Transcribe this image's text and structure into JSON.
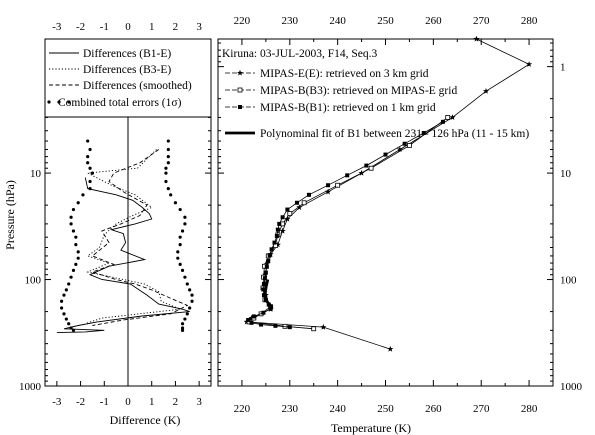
{
  "chart_data": [
    {
      "type": "line",
      "xlabel": "Difference (K)",
      "ylabel": "Pressure (hPa)",
      "xlim": [
        -3.5,
        3.5
      ],
      "ylim": [
        1000,
        0.55
      ],
      "yscale": "log",
      "x_ticks": [
        "-3",
        "-2",
        "-1",
        "0",
        "1",
        "2",
        "3"
      ],
      "y_ticks": [
        "10",
        "100",
        "1000"
      ],
      "zero_line": true,
      "legend_position": "top",
      "legend": [
        {
          "label": "Differences (B1-E)",
          "style": "solid"
        },
        {
          "label": "Differences (B3-E)",
          "style": "dotted"
        },
        {
          "label": "Differences (smoothed)",
          "style": "dashed"
        },
        {
          "label": "Combined total errors (1σ)",
          "style": "points"
        }
      ],
      "series": [
        {
          "name": "Differences (B1-E)",
          "style": "solid",
          "points": [
            [
              -1.8,
              11
            ],
            [
              -1.7,
              14
            ],
            [
              -0.5,
              16
            ],
            [
              0.2,
              18
            ],
            [
              0.6,
              21
            ],
            [
              0.9,
              24
            ],
            [
              1,
              27
            ],
            [
              0.3,
              30
            ],
            [
              -0.7,
              34
            ],
            [
              -0.2,
              37
            ],
            [
              -0.1,
              45
            ],
            [
              -0.3,
              53
            ],
            [
              0.7,
              65
            ],
            [
              -0.8,
              75
            ],
            [
              -1.6,
              90
            ],
            [
              -1.1,
              100
            ],
            [
              0.1,
              110
            ],
            [
              0.8,
              140
            ],
            [
              1.3,
              170
            ],
            [
              2.3,
              190
            ],
            [
              2.6,
              200
            ],
            [
              0.6,
              220
            ],
            [
              -1.3,
              250
            ],
            [
              -2.1,
              270
            ],
            [
              -2.7,
              290
            ],
            [
              -1,
              300
            ],
            [
              -1.8,
              310
            ],
            [
              -3,
              315
            ]
          ]
        },
        {
          "name": "Differences (B3-E)",
          "style": "dotted",
          "points": [
            [
              1.2,
              6
            ],
            [
              0.4,
              9
            ],
            [
              -1.7,
              10
            ],
            [
              -0.7,
              13
            ],
            [
              0.3,
              16
            ],
            [
              1,
              21
            ],
            [
              0.2,
              25
            ],
            [
              -0.5,
              30
            ],
            [
              -1,
              38
            ],
            [
              -1.2,
              50
            ],
            [
              -1.7,
              60
            ],
            [
              -0.8,
              70
            ],
            [
              -1.7,
              85
            ],
            [
              -0.2,
              100
            ],
            [
              0.7,
              110
            ],
            [
              1.3,
              130
            ],
            [
              1.4,
              160
            ],
            [
              2.2,
              190
            ],
            [
              1.3,
              200
            ],
            [
              -1.1,
              230
            ],
            [
              -1.8,
              260
            ]
          ]
        },
        {
          "name": "Differences (smoothed)",
          "style": "dashed",
          "points": [
            [
              1.3,
              6
            ],
            [
              0.5,
              8
            ],
            [
              -0.6,
              10
            ],
            [
              -0.8,
              12
            ],
            [
              -0.2,
              15
            ],
            [
              0.8,
              20
            ],
            [
              0.5,
              25
            ],
            [
              -0.3,
              30
            ],
            [
              -1.1,
              35
            ],
            [
              -0.8,
              45
            ],
            [
              -1.5,
              60
            ],
            [
              -0.6,
              72
            ],
            [
              -1.5,
              85
            ],
            [
              -0.5,
              100
            ],
            [
              0.3,
              110
            ],
            [
              1,
              125
            ],
            [
              1.8,
              150
            ],
            [
              2.5,
              175
            ],
            [
              1.8,
              210
            ],
            [
              -0.2,
              240
            ],
            [
              -1.5,
              270
            ]
          ]
        },
        {
          "name": "Combined total errors (1σ)",
          "style": "points",
          "points": [
            [
              -1.7,
              5
            ],
            [
              -1.6,
              6
            ],
            [
              -1.7,
              7
            ],
            [
              -1.7,
              8
            ],
            [
              -1.6,
              9
            ],
            [
              -1.5,
              10
            ],
            [
              -1.6,
              12
            ],
            [
              -1.6,
              14
            ],
            [
              -1.9,
              16
            ],
            [
              -2.1,
              19
            ],
            [
              -2.3,
              22
            ],
            [
              -2.4,
              26
            ],
            [
              -2.4,
              30
            ],
            [
              -2.3,
              35
            ],
            [
              -2.2,
              40
            ],
            [
              -2.2,
              47
            ],
            [
              -2.1,
              55
            ],
            [
              -2.1,
              63
            ],
            [
              -2.2,
              72
            ],
            [
              -2.3,
              82
            ],
            [
              -2.4,
              95
            ],
            [
              -2.5,
              110
            ],
            [
              -2.6,
              125
            ],
            [
              -2.7,
              140
            ],
            [
              -2.8,
              160
            ],
            [
              -2.8,
              185
            ],
            [
              -2.7,
              210
            ],
            [
              -2.6,
              235
            ],
            [
              -2.5,
              260
            ],
            [
              -2.4,
              285
            ],
            [
              -2.3,
              300
            ],
            [
              1.7,
              5
            ],
            [
              1.7,
              6
            ],
            [
              1.7,
              7
            ],
            [
              1.7,
              8
            ],
            [
              1.6,
              9
            ],
            [
              1.6,
              10
            ],
            [
              1.6,
              12
            ],
            [
              1.7,
              14
            ],
            [
              1.8,
              16
            ],
            [
              2,
              19
            ],
            [
              2.2,
              22
            ],
            [
              2.4,
              26
            ],
            [
              2.4,
              30
            ],
            [
              2.3,
              35
            ],
            [
              2.2,
              40
            ],
            [
              2.2,
              47
            ],
            [
              2.1,
              55
            ],
            [
              2.1,
              63
            ],
            [
              2.2,
              72
            ],
            [
              2.3,
              82
            ],
            [
              2.4,
              95
            ],
            [
              2.5,
              110
            ],
            [
              2.6,
              125
            ],
            [
              2.7,
              140
            ],
            [
              2.7,
              160
            ],
            [
              2.6,
              185
            ],
            [
              2.5,
              210
            ],
            [
              2.4,
              235
            ],
            [
              2.3,
              260
            ],
            [
              2.3,
              285
            ],
            [
              2.3,
              300
            ]
          ]
        }
      ]
    },
    {
      "type": "line",
      "xlabel": "Temperature (K)",
      "ylabel": "",
      "xlim": [
        215,
        285
      ],
      "ylim": [
        1000,
        0.55
      ],
      "yscale": "log",
      "x_ticks": [
        "220",
        "230",
        "240",
        "250",
        "260",
        "270",
        "280"
      ],
      "y_ticks_right": [
        "1",
        "10",
        "100",
        "1000"
      ],
      "title": "Kiruna: 03-JUL-2003, F14, Seq.3",
      "legend_position": "top-left",
      "legend": [
        {
          "label": "MIPAS-E(E): retrieved on 3 km grid",
          "style": "star"
        },
        {
          "label": "MIPAS-B(B3): retrieved on MIPAS-E grid",
          "style": "open-square"
        },
        {
          "label": "MIPAS-B(B1): retrieved on 1 km grid",
          "style": "filled-square"
        },
        {
          "label": "Polynominal fit of B1 between 231 - 126 hPa (11 - 15 km)",
          "style": "thick"
        }
      ],
      "series": [
        {
          "name": "MIPAS-E(E): retrieved on 3 km grid",
          "style": "star",
          "points": [
            [
              269,
              0.55
            ],
            [
              280,
              0.95
            ],
            [
              271,
              1.7
            ],
            [
              264,
              3
            ],
            [
              253,
              6
            ],
            [
              245,
              10
            ],
            [
              238,
              15
            ],
            [
              232,
              21
            ],
            [
              229.5,
              27
            ],
            [
              228.5,
              35
            ],
            [
              227.5,
              47
            ],
            [
              226,
              58
            ],
            [
              225.2,
              72
            ],
            [
              224.9,
              90
            ],
            [
              224.8,
              110
            ],
            [
              225,
              140
            ],
            [
              226,
              190
            ],
            [
              222,
              230
            ],
            [
              221,
              250
            ],
            [
              237,
              280
            ],
            [
              251,
              450
            ]
          ]
        },
        {
          "name": "MIPAS-B(B3): retrieved on MIPAS-E grid",
          "style": "open-square",
          "points": [
            [
              263,
              3
            ],
            [
              255,
              5.5
            ],
            [
              247,
              9
            ],
            [
              240,
              13
            ],
            [
              233,
              19
            ],
            [
              230,
              24
            ],
            [
              228.5,
              30
            ],
            [
              227.5,
              38
            ],
            [
              227,
              48
            ],
            [
              225.5,
              60
            ],
            [
              224.7,
              75
            ],
            [
              224.5,
              95
            ],
            [
              224.4,
              120
            ],
            [
              224.8,
              155
            ],
            [
              226,
              180
            ],
            [
              224,
              210
            ],
            [
              222.5,
              230
            ],
            [
              221.5,
              250
            ],
            [
              229,
              275
            ],
            [
              235,
              290
            ]
          ]
        },
        {
          "name": "MIPAS-B(B1): retrieved on 1 km grid",
          "style": "filled-square",
          "points": [
            [
              262,
              3.3
            ],
            [
              258,
              4.2
            ],
            [
              254,
              5.3
            ],
            [
              250,
              6.7
            ],
            [
              246,
              8.5
            ],
            [
              242,
              10.5
            ],
            [
              238,
              13
            ],
            [
              234,
              16
            ],
            [
              231.5,
              19
            ],
            [
              229.5,
              22
            ],
            [
              228.5,
              26
            ],
            [
              227.8,
              30
            ],
            [
              227.5,
              34
            ],
            [
              227.3,
              39
            ],
            [
              226.8,
              45
            ],
            [
              226.2,
              52
            ],
            [
              225.8,
              59
            ],
            [
              225.5,
              67
            ],
            [
              225.2,
              76
            ],
            [
              225,
              86
            ],
            [
              224.8,
              97
            ],
            [
              224.6,
              110
            ],
            [
              224.5,
              124
            ],
            [
              224.6,
              140
            ],
            [
              225,
              156
            ],
            [
              225.6,
              172
            ],
            [
              226,
              188
            ],
            [
              224.5,
              205
            ],
            [
              222.5,
              222
            ],
            [
              221.3,
              240
            ],
            [
              222,
              255
            ],
            [
              224,
              265
            ],
            [
              227,
              272
            ],
            [
              230,
              280
            ]
          ]
        },
        {
          "name": "Polynominal fit of B1 between 231 - 126 hPa (11 - 15 km)",
          "style": "thick",
          "points": [
            [
              225.4,
              100
            ],
            [
              225.1,
              115
            ],
            [
              224.9,
              130
            ],
            [
              224.9,
              145
            ],
            [
              225.2,
              160
            ],
            [
              225.8,
              172
            ],
            [
              226.3,
              182
            ]
          ]
        }
      ]
    }
  ]
}
